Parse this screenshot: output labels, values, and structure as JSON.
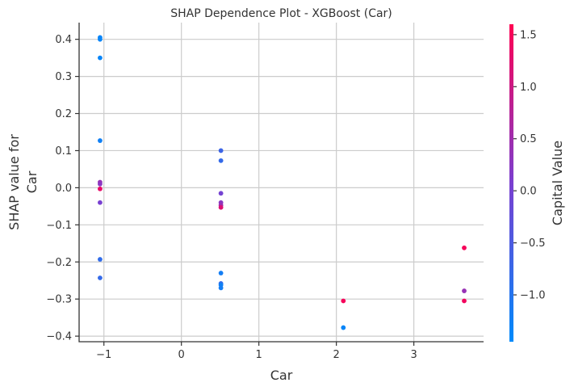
{
  "chart_data": {
    "type": "scatter",
    "title": "SHAP Dependence Plot - XGBoost (Car)",
    "xlabel": "Car",
    "ylabel_lines": [
      "SHAP value for",
      "Car"
    ],
    "xlim": [
      -1.32,
      3.9
    ],
    "ylim": [
      -0.415,
      0.445
    ],
    "xticks": [
      -1,
      0,
      1,
      2,
      3
    ],
    "yticks": [
      -0.4,
      -0.3,
      -0.2,
      -0.1,
      0.0,
      0.1,
      0.2,
      0.3,
      0.4
    ],
    "grid": true,
    "colorbar": {
      "label": "Capital Value",
      "range": [
        -1.45,
        1.6
      ],
      "ticks": [
        -1.0,
        -0.5,
        0.0,
        0.5,
        1.0,
        1.5
      ],
      "colors": [
        "#008afb",
        "#7b3fd0",
        "#ff0052"
      ]
    },
    "points": [
      {
        "x": -1.05,
        "y": 0.405,
        "c": -1.35
      },
      {
        "x": -1.05,
        "y": 0.4,
        "c": -1.35
      },
      {
        "x": -1.05,
        "y": 0.35,
        "c": -1.35
      },
      {
        "x": -1.05,
        "y": 0.127,
        "c": -1.25
      },
      {
        "x": -1.05,
        "y": 0.015,
        "c": 0.35
      },
      {
        "x": -1.05,
        "y": 0.01,
        "c": 0.25
      },
      {
        "x": -1.05,
        "y": -0.003,
        "c": 1.35
      },
      {
        "x": -1.05,
        "y": -0.04,
        "c": 0.05
      },
      {
        "x": -1.05,
        "y": -0.193,
        "c": -0.85
      },
      {
        "x": -1.05,
        "y": -0.243,
        "c": -0.8
      },
      {
        "x": 0.51,
        "y": 0.1,
        "c": -0.7
      },
      {
        "x": 0.51,
        "y": 0.073,
        "c": -0.8
      },
      {
        "x": 0.51,
        "y": -0.015,
        "c": 0.0
      },
      {
        "x": 0.51,
        "y": -0.04,
        "c": 0.25
      },
      {
        "x": 0.51,
        "y": -0.047,
        "c": 0.45
      },
      {
        "x": 0.51,
        "y": -0.053,
        "c": 1.2
      },
      {
        "x": 0.51,
        "y": -0.23,
        "c": -1.2
      },
      {
        "x": 0.51,
        "y": -0.258,
        "c": -0.85
      },
      {
        "x": 0.51,
        "y": -0.262,
        "c": -1.25
      },
      {
        "x": 0.51,
        "y": -0.27,
        "c": -1.2
      },
      {
        "x": 2.09,
        "y": -0.305,
        "c": 1.5
      },
      {
        "x": 2.09,
        "y": -0.377,
        "c": -1.35
      },
      {
        "x": 3.65,
        "y": -0.162,
        "c": 1.5
      },
      {
        "x": 3.65,
        "y": -0.278,
        "c": 0.4
      },
      {
        "x": 3.65,
        "y": -0.305,
        "c": 1.45
      }
    ]
  }
}
